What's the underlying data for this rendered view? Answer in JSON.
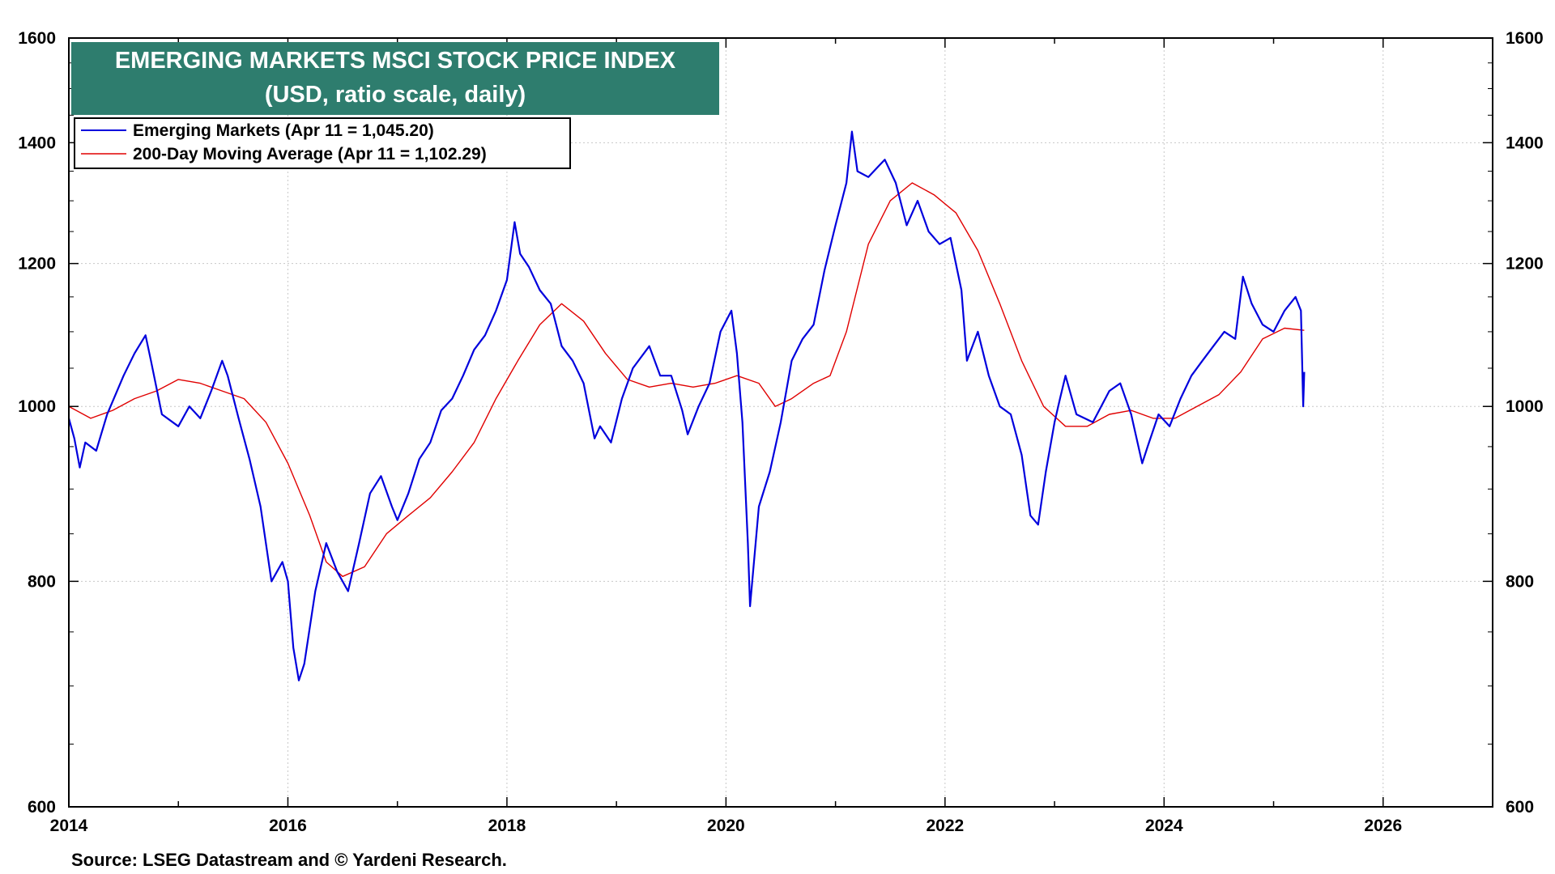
{
  "chart_data": {
    "type": "line",
    "title": "EMERGING MARKETS MSCI STOCK PRICE INDEX",
    "subtitle": "(USD, ratio scale, daily)",
    "source": "Source: LSEG Datastream and © Yardeni Research.",
    "y_scale": "log",
    "xlim": [
      2014,
      2027
    ],
    "ylim": [
      600,
      1600
    ],
    "x_ticks": [
      "2014",
      "2016",
      "2018",
      "2020",
      "2022",
      "2024",
      "2026"
    ],
    "y_ticks": [
      "600",
      "800",
      "1000",
      "1200",
      "1400",
      "1600"
    ],
    "grid": true,
    "legend_position": "top-left",
    "colors": {
      "title_bg": "#2e7d6e",
      "series_main": "#0000dd",
      "series_ma": "#e00000"
    },
    "series": [
      {
        "name": "Emerging Markets (Apr 11 = 1,045.20)",
        "color": "#0000dd",
        "points": [
          [
            2014.0,
            985
          ],
          [
            2014.05,
            960
          ],
          [
            2014.1,
            925
          ],
          [
            2014.15,
            955
          ],
          [
            2014.25,
            945
          ],
          [
            2014.35,
            990
          ],
          [
            2014.5,
            1040
          ],
          [
            2014.6,
            1070
          ],
          [
            2014.7,
            1095
          ],
          [
            2014.75,
            1060
          ],
          [
            2014.85,
            990
          ],
          [
            2015.0,
            975
          ],
          [
            2015.1,
            1000
          ],
          [
            2015.2,
            985
          ],
          [
            2015.3,
            1020
          ],
          [
            2015.4,
            1060
          ],
          [
            2015.45,
            1040
          ],
          [
            2015.55,
            985
          ],
          [
            2015.65,
            935
          ],
          [
            2015.75,
            880
          ],
          [
            2015.85,
            800
          ],
          [
            2015.95,
            820
          ],
          [
            2016.0,
            800
          ],
          [
            2016.05,
            735
          ],
          [
            2016.1,
            705
          ],
          [
            2016.15,
            720
          ],
          [
            2016.25,
            790
          ],
          [
            2016.35,
            840
          ],
          [
            2016.45,
            810
          ],
          [
            2016.55,
            790
          ],
          [
            2016.65,
            840
          ],
          [
            2016.75,
            895
          ],
          [
            2016.85,
            915
          ],
          [
            2016.95,
            880
          ],
          [
            2017.0,
            865
          ],
          [
            2017.1,
            895
          ],
          [
            2017.2,
            935
          ],
          [
            2017.3,
            955
          ],
          [
            2017.4,
            995
          ],
          [
            2017.5,
            1010
          ],
          [
            2017.6,
            1040
          ],
          [
            2017.7,
            1075
          ],
          [
            2017.8,
            1095
          ],
          [
            2017.9,
            1130
          ],
          [
            2018.0,
            1175
          ],
          [
            2018.07,
            1265
          ],
          [
            2018.12,
            1215
          ],
          [
            2018.2,
            1195
          ],
          [
            2018.3,
            1160
          ],
          [
            2018.4,
            1140
          ],
          [
            2018.5,
            1080
          ],
          [
            2018.6,
            1060
          ],
          [
            2018.7,
            1030
          ],
          [
            2018.8,
            960
          ],
          [
            2018.85,
            975
          ],
          [
            2018.95,
            955
          ],
          [
            2019.05,
            1010
          ],
          [
            2019.15,
            1050
          ],
          [
            2019.3,
            1080
          ],
          [
            2019.4,
            1040
          ],
          [
            2019.5,
            1040
          ],
          [
            2019.6,
            995
          ],
          [
            2019.65,
            965
          ],
          [
            2019.75,
            1000
          ],
          [
            2019.85,
            1030
          ],
          [
            2019.95,
            1100
          ],
          [
            2020.05,
            1130
          ],
          [
            2020.1,
            1070
          ],
          [
            2020.15,
            980
          ],
          [
            2020.2,
            840
          ],
          [
            2020.22,
            775
          ],
          [
            2020.3,
            880
          ],
          [
            2020.4,
            920
          ],
          [
            2020.5,
            980
          ],
          [
            2020.6,
            1060
          ],
          [
            2020.7,
            1090
          ],
          [
            2020.8,
            1110
          ],
          [
            2020.9,
            1190
          ],
          [
            2021.0,
            1260
          ],
          [
            2021.1,
            1330
          ],
          [
            2021.15,
            1420
          ],
          [
            2021.2,
            1350
          ],
          [
            2021.3,
            1340
          ],
          [
            2021.4,
            1360
          ],
          [
            2021.45,
            1370
          ],
          [
            2021.55,
            1330
          ],
          [
            2021.65,
            1260
          ],
          [
            2021.75,
            1300
          ],
          [
            2021.85,
            1250
          ],
          [
            2021.95,
            1230
          ],
          [
            2022.05,
            1240
          ],
          [
            2022.15,
            1160
          ],
          [
            2022.2,
            1060
          ],
          [
            2022.3,
            1100
          ],
          [
            2022.4,
            1040
          ],
          [
            2022.5,
            1000
          ],
          [
            2022.6,
            990
          ],
          [
            2022.7,
            940
          ],
          [
            2022.78,
            870
          ],
          [
            2022.85,
            860
          ],
          [
            2022.92,
            920
          ],
          [
            2023.0,
            980
          ],
          [
            2023.05,
            1010
          ],
          [
            2023.1,
            1040
          ],
          [
            2023.2,
            990
          ],
          [
            2023.35,
            980
          ],
          [
            2023.5,
            1020
          ],
          [
            2023.6,
            1030
          ],
          [
            2023.7,
            990
          ],
          [
            2023.8,
            930
          ],
          [
            2023.85,
            950
          ],
          [
            2023.95,
            990
          ],
          [
            2024.05,
            975
          ],
          [
            2024.15,
            1010
          ],
          [
            2024.25,
            1040
          ],
          [
            2024.35,
            1060
          ],
          [
            2024.45,
            1080
          ],
          [
            2024.55,
            1100
          ],
          [
            2024.65,
            1090
          ],
          [
            2024.72,
            1180
          ],
          [
            2024.8,
            1140
          ],
          [
            2024.9,
            1110
          ],
          [
            2025.0,
            1100
          ],
          [
            2025.1,
            1130
          ],
          [
            2025.2,
            1150
          ],
          [
            2025.25,
            1130
          ],
          [
            2025.27,
            1000
          ],
          [
            2025.28,
            1045
          ]
        ]
      },
      {
        "name": "200-Day Moving Average (Apr 11 = 1,102.29)",
        "color": "#e00000",
        "points": [
          [
            2014.0,
            1000
          ],
          [
            2014.2,
            985
          ],
          [
            2014.4,
            995
          ],
          [
            2014.6,
            1010
          ],
          [
            2014.8,
            1020
          ],
          [
            2015.0,
            1035
          ],
          [
            2015.2,
            1030
          ],
          [
            2015.4,
            1020
          ],
          [
            2015.6,
            1010
          ],
          [
            2015.8,
            980
          ],
          [
            2016.0,
            930
          ],
          [
            2016.2,
            870
          ],
          [
            2016.35,
            820
          ],
          [
            2016.5,
            805
          ],
          [
            2016.7,
            815
          ],
          [
            2016.9,
            850
          ],
          [
            2017.1,
            870
          ],
          [
            2017.3,
            890
          ],
          [
            2017.5,
            920
          ],
          [
            2017.7,
            955
          ],
          [
            2017.9,
            1010
          ],
          [
            2018.1,
            1060
          ],
          [
            2018.3,
            1110
          ],
          [
            2018.5,
            1140
          ],
          [
            2018.7,
            1115
          ],
          [
            2018.9,
            1070
          ],
          [
            2019.1,
            1035
          ],
          [
            2019.3,
            1025
          ],
          [
            2019.5,
            1030
          ],
          [
            2019.7,
            1025
          ],
          [
            2019.9,
            1030
          ],
          [
            2020.1,
            1040
          ],
          [
            2020.3,
            1030
          ],
          [
            2020.45,
            1000
          ],
          [
            2020.6,
            1010
          ],
          [
            2020.8,
            1030
          ],
          [
            2020.95,
            1040
          ],
          [
            2021.1,
            1100
          ],
          [
            2021.3,
            1230
          ],
          [
            2021.5,
            1300
          ],
          [
            2021.7,
            1330
          ],
          [
            2021.9,
            1310
          ],
          [
            2022.1,
            1280
          ],
          [
            2022.3,
            1220
          ],
          [
            2022.5,
            1140
          ],
          [
            2022.7,
            1060
          ],
          [
            2022.9,
            1000
          ],
          [
            2023.1,
            975
          ],
          [
            2023.3,
            975
          ],
          [
            2023.5,
            990
          ],
          [
            2023.7,
            995
          ],
          [
            2023.9,
            985
          ],
          [
            2024.1,
            985
          ],
          [
            2024.3,
            1000
          ],
          [
            2024.5,
            1015
          ],
          [
            2024.7,
            1045
          ],
          [
            2024.9,
            1090
          ],
          [
            2025.1,
            1105
          ],
          [
            2025.28,
            1102
          ]
        ]
      }
    ]
  }
}
